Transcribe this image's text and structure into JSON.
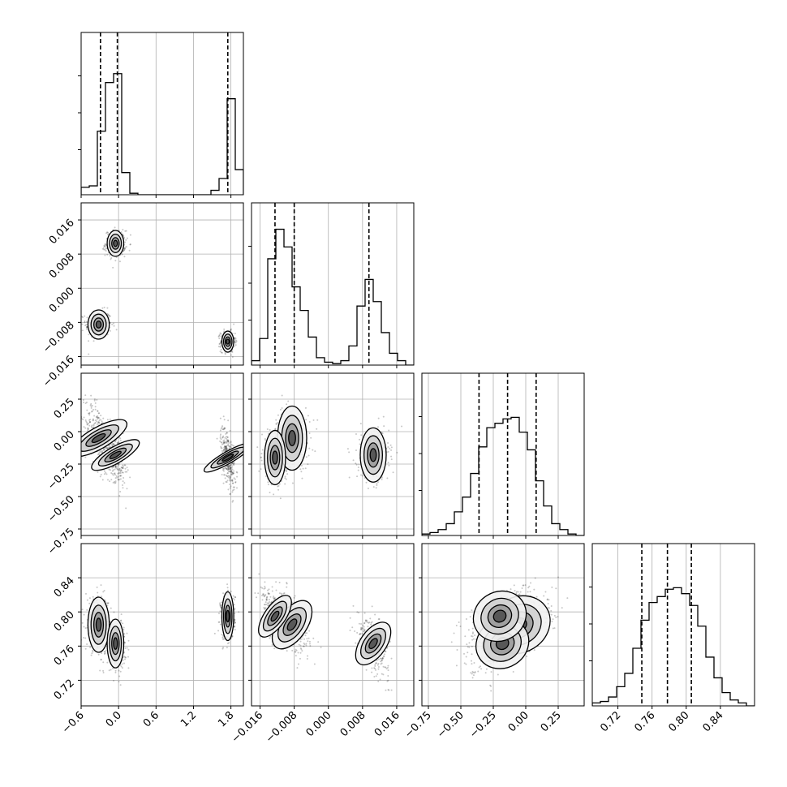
{
  "chart_data": {
    "type": "corner",
    "grid": true,
    "parameters": [
      {
        "range": [
          -0.6,
          2.0
        ],
        "ticks": [
          -0.6,
          0.0,
          0.6,
          1.2,
          1.8
        ],
        "tick_labels": [
          "−0.6",
          "0.0",
          "0.6",
          "1.2",
          "1.8"
        ],
        "quantiles": [
          -0.29,
          -0.02,
          1.75
        ],
        "hist_edges": [
          -0.6,
          -0.47,
          -0.34,
          -0.21,
          -0.08,
          0.05,
          0.18,
          0.31,
          0.44,
          0.57,
          0.7,
          0.83,
          0.96,
          1.09,
          1.22,
          1.35,
          1.48,
          1.61,
          1.74,
          1.87,
          2.0
        ],
        "hist_counts": [
          0.05,
          0.06,
          0.43,
          0.76,
          0.82,
          0.15,
          0.01,
          0,
          0,
          0,
          0,
          0,
          0,
          0,
          0,
          0,
          0.03,
          0.11,
          0.65,
          0.17
        ]
      },
      {
        "range": [
          -0.018,
          0.02
        ],
        "ticks": [
          -0.016,
          -0.008,
          0.0,
          0.008,
          0.016
        ],
        "tick_labels": [
          "−0.016",
          "−0.008",
          "0.000",
          "0.008",
          "0.016"
        ],
        "quantiles": [
          -0.0125,
          -0.008,
          0.0095
        ],
        "hist_edges": [
          -0.018,
          -0.0161,
          -0.0142,
          -0.0123,
          -0.0104,
          -0.0085,
          -0.0066,
          -0.0047,
          -0.0028,
          -0.0009,
          0.001,
          0.0029,
          0.0048,
          0.0067,
          0.0086,
          0.0105,
          0.0124,
          0.0143,
          0.0162,
          0.0181,
          0.02
        ],
        "hist_counts": [
          0.03,
          0.18,
          0.72,
          0.92,
          0.8,
          0.53,
          0.37,
          0.19,
          0.05,
          0.02,
          0.01,
          0.03,
          0.13,
          0.4,
          0.58,
          0.43,
          0.22,
          0.08,
          0.03,
          0.0
        ]
      },
      {
        "range": [
          -0.8,
          0.45
        ],
        "ticks": [
          -0.75,
          -0.5,
          -0.25,
          0.0,
          0.25
        ],
        "tick_labels": [
          "−0.75",
          "−0.50",
          "−0.25",
          "0.00",
          "0.25"
        ],
        "quantiles": [
          -0.36,
          -0.14,
          0.08
        ],
        "hist_edges": [
          -0.8,
          -0.7375,
          -0.675,
          -0.6125,
          -0.55,
          -0.4875,
          -0.425,
          -0.3625,
          -0.3,
          -0.2375,
          -0.175,
          -0.1125,
          -0.05,
          0.0125,
          0.075,
          0.1375,
          0.2,
          0.2625,
          0.325,
          0.3875,
          0.45
        ],
        "hist_counts": [
          0.01,
          0.02,
          0.04,
          0.08,
          0.16,
          0.26,
          0.42,
          0.6,
          0.73,
          0.76,
          0.79,
          0.8,
          0.7,
          0.58,
          0.37,
          0.2,
          0.08,
          0.04,
          0.01,
          0.0
        ]
      },
      {
        "range": [
          0.69,
          0.88
        ],
        "ticks": [
          0.72,
          0.76,
          0.8,
          0.84
        ],
        "tick_labels": [
          "0.72",
          "0.76",
          "0.80",
          "0.84"
        ],
        "quantiles": [
          0.748,
          0.778,
          0.806
        ],
        "hist_edges": [
          0.69,
          0.6995,
          0.709,
          0.7185,
          0.728,
          0.7375,
          0.747,
          0.7565,
          0.766,
          0.7755,
          0.785,
          0.7945,
          0.804,
          0.8135,
          0.823,
          0.8325,
          0.842,
          0.8515,
          0.861,
          0.8705,
          0.88
        ],
        "hist_counts": [
          0.02,
          0.03,
          0.06,
          0.13,
          0.22,
          0.39,
          0.58,
          0.7,
          0.74,
          0.79,
          0.8,
          0.76,
          0.68,
          0.54,
          0.33,
          0.19,
          0.09,
          0.04,
          0.02,
          0.0
        ]
      }
    ],
    "clusters": [
      {
        "center": [
          -0.32,
          -0.0085,
          -0.05,
          0.785
        ],
        "spread": [
          0.09,
          0.0018,
          0.13,
          0.017
        ]
      },
      {
        "center": [
          -0.05,
          0.0105,
          -0.18,
          0.763
        ],
        "spread": [
          0.07,
          0.0016,
          0.11,
          0.015
        ]
      },
      {
        "center": [
          1.75,
          -0.0125,
          -0.2,
          0.795
        ],
        "spread": [
          0.05,
          0.0013,
          0.11,
          0.015
        ]
      }
    ]
  }
}
